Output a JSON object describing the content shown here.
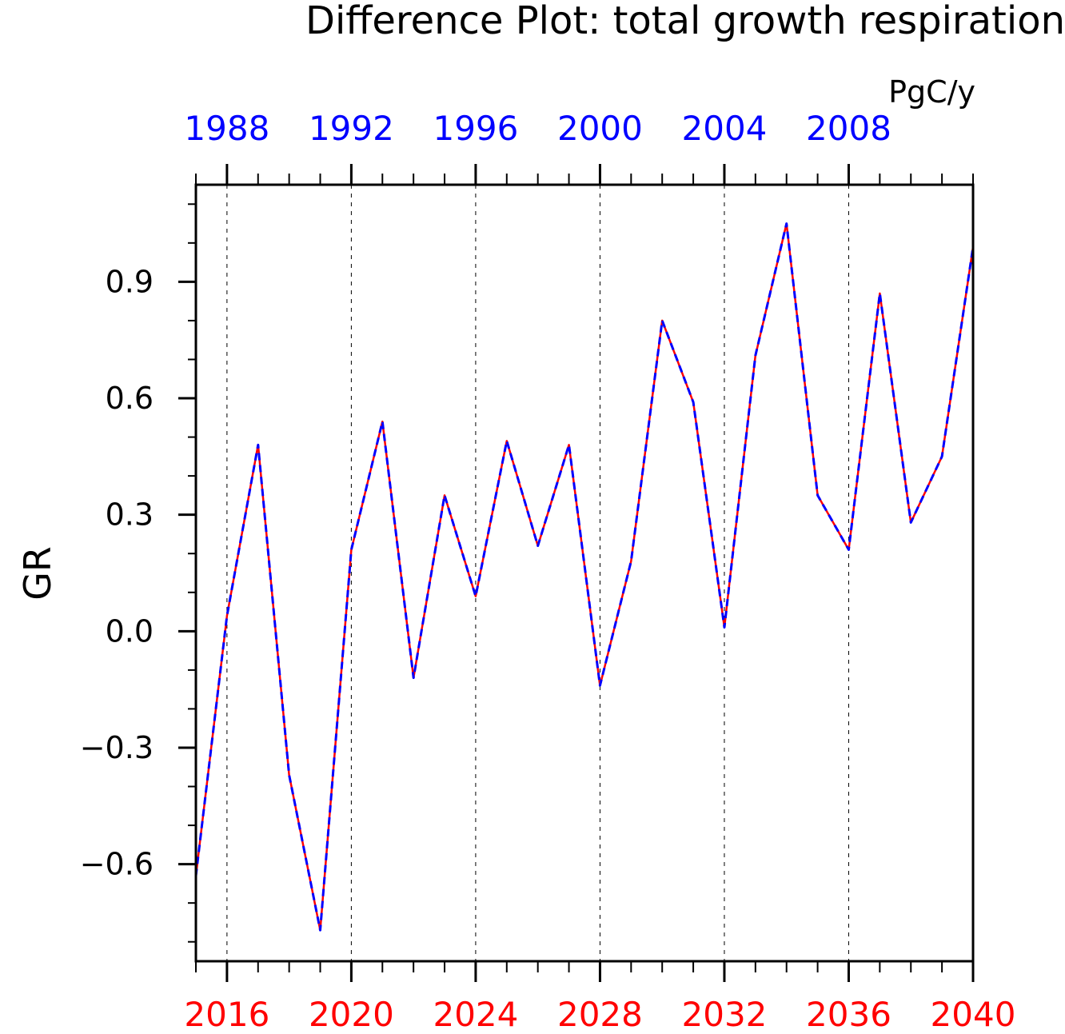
{
  "chart_data": {
    "type": "line",
    "title": "Difference Plot: total growth respiration",
    "units": "PgC/y",
    "ylabel": "GR",
    "xlabel": "",
    "ylim": [
      -0.85,
      1.15
    ],
    "xlim": [
      2015,
      2040
    ],
    "yticks": [
      -0.6,
      -0.3,
      0.0,
      0.3,
      0.6,
      0.9
    ],
    "ytick_labels": [
      "−0.6",
      "−0.3",
      "0.0",
      "0.3",
      "0.6",
      "0.9"
    ],
    "bottom_axis": {
      "ticks": [
        2016,
        2020,
        2024,
        2028,
        2032,
        2036,
        2040
      ],
      "labels": [
        "2016",
        "2020",
        "2024",
        "2028",
        "2032",
        "2036",
        "2040"
      ],
      "color": "#ff0000"
    },
    "top_axis": {
      "ticks": [
        1988,
        1992,
        1996,
        2000,
        2004,
        2008
      ],
      "labels": [
        "1988",
        "1992",
        "1996",
        "2000",
        "2004",
        "2008"
      ],
      "offset_years": 28,
      "color": "#0000ff"
    },
    "grid": "vertical dashed at labeled bottom ticks",
    "x": [
      2015,
      2016,
      2017,
      2018,
      2019,
      2020,
      2021,
      2022,
      2023,
      2024,
      2025,
      2026,
      2027,
      2028,
      2029,
      2030,
      2031,
      2032,
      2033,
      2034,
      2035,
      2036,
      2037,
      2038,
      2039,
      2040
    ],
    "series": [
      {
        "color": "#ff0000",
        "style": "solid",
        "values": [
          -0.63,
          0.04,
          0.48,
          -0.37,
          -0.77,
          0.21,
          0.54,
          -0.12,
          0.35,
          0.09,
          0.49,
          0.22,
          0.48,
          -0.14,
          0.18,
          0.8,
          0.59,
          0.01,
          0.71,
          1.05,
          0.35,
          0.21,
          0.87,
          0.28,
          0.45,
          0.99
        ]
      },
      {
        "color": "#0000ff",
        "style": "dashed",
        "values": [
          -0.63,
          0.04,
          0.48,
          -0.37,
          -0.77,
          0.21,
          0.54,
          -0.12,
          0.35,
          0.09,
          0.49,
          0.22,
          0.48,
          -0.14,
          0.18,
          0.8,
          0.59,
          0.01,
          0.71,
          1.05,
          0.35,
          0.21,
          0.87,
          0.28,
          0.45,
          0.99
        ]
      }
    ]
  }
}
